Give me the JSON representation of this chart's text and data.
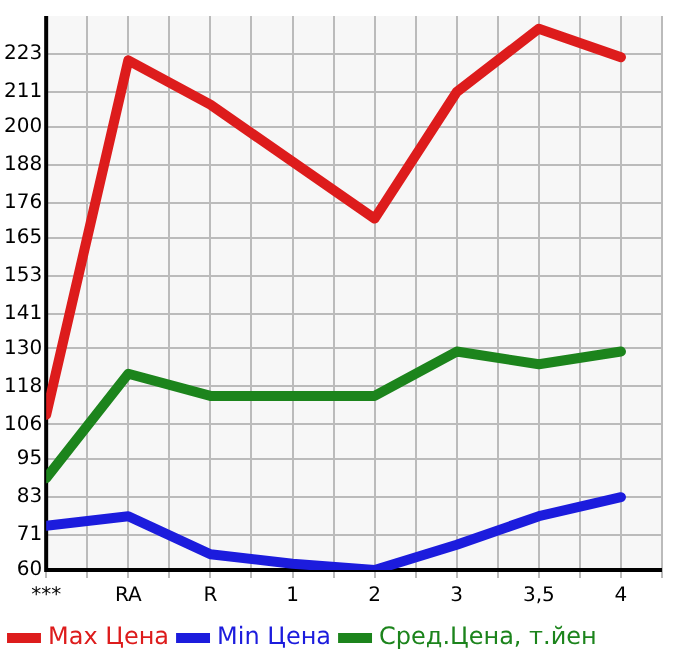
{
  "chart_data": {
    "type": "line",
    "categories": [
      "***",
      "RA",
      "R",
      "1",
      "2",
      "3",
      "3,5",
      "4"
    ],
    "series": [
      {
        "name": "Max Цена",
        "color": "#dd1c1c",
        "values": [
          109,
          221,
          207,
          189,
          171,
          211,
          231,
          222
        ]
      },
      {
        "name": "Min Цена",
        "color": "#1c1cdd",
        "values": [
          74,
          77,
          65,
          62,
          60,
          68,
          77,
          83
        ]
      },
      {
        "name": "Сред.Цена, т.йен",
        "color": "#1c841c",
        "values": [
          89,
          122,
          115,
          115,
          115,
          129,
          125,
          129
        ]
      }
    ],
    "ylim": [
      60,
      235
    ],
    "yticks": [
      60,
      71,
      83,
      95,
      106,
      118,
      130,
      141,
      153,
      165,
      176,
      188,
      200,
      211,
      223
    ],
    "grid": true,
    "legend": "bottom",
    "marker": "none",
    "line_style": "solid"
  }
}
